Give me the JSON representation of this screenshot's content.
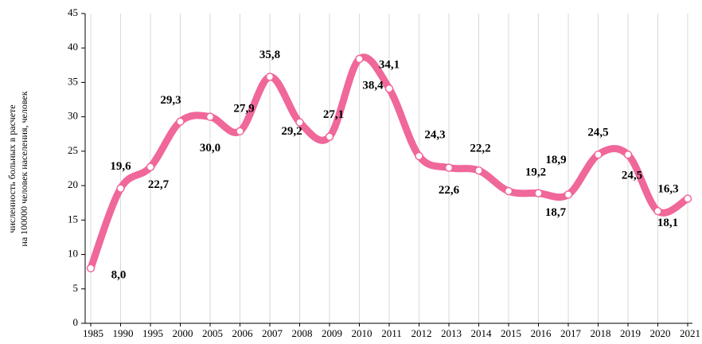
{
  "chart_data": {
    "type": "line",
    "ylabel": [
      "численность больных в расчете",
      "на 100000 человек населения, человек"
    ],
    "categories": [
      "1985",
      "1990",
      "1995",
      "2000",
      "2005",
      "2006",
      "2007",
      "2008",
      "2009",
      "2010",
      "2011",
      "2012",
      "2013",
      "2014",
      "2015",
      "2016",
      "2017",
      "2018",
      "2019",
      "2020",
      "2021"
    ],
    "series": [
      {
        "name": null,
        "color": "#f0679a",
        "values": [
          8.0,
          19.6,
          22.7,
          29.3,
          30.0,
          27.9,
          35.8,
          29.2,
          27.1,
          38.4,
          34.1,
          24.3,
          22.6,
          22.2,
          19.2,
          18.9,
          18.7,
          24.5,
          24.5,
          16.3,
          18.1
        ],
        "value_labels": [
          "8,0",
          "19,6",
          "22,7",
          "29,3",
          "30,0",
          "27,9",
          "35,8",
          "29,2",
          "27,1",
          "38,4",
          "34,1",
          "24,3",
          "22,6",
          "22,2",
          "19,2",
          "18,9",
          "18,7",
          "24,5",
          "24,5",
          "16,3",
          "18,1"
        ]
      }
    ],
    "ylim": [
      0,
      45
    ],
    "yticks": [
      0,
      5,
      10,
      15,
      20,
      25,
      30,
      35,
      40,
      45
    ],
    "grid": true
  }
}
